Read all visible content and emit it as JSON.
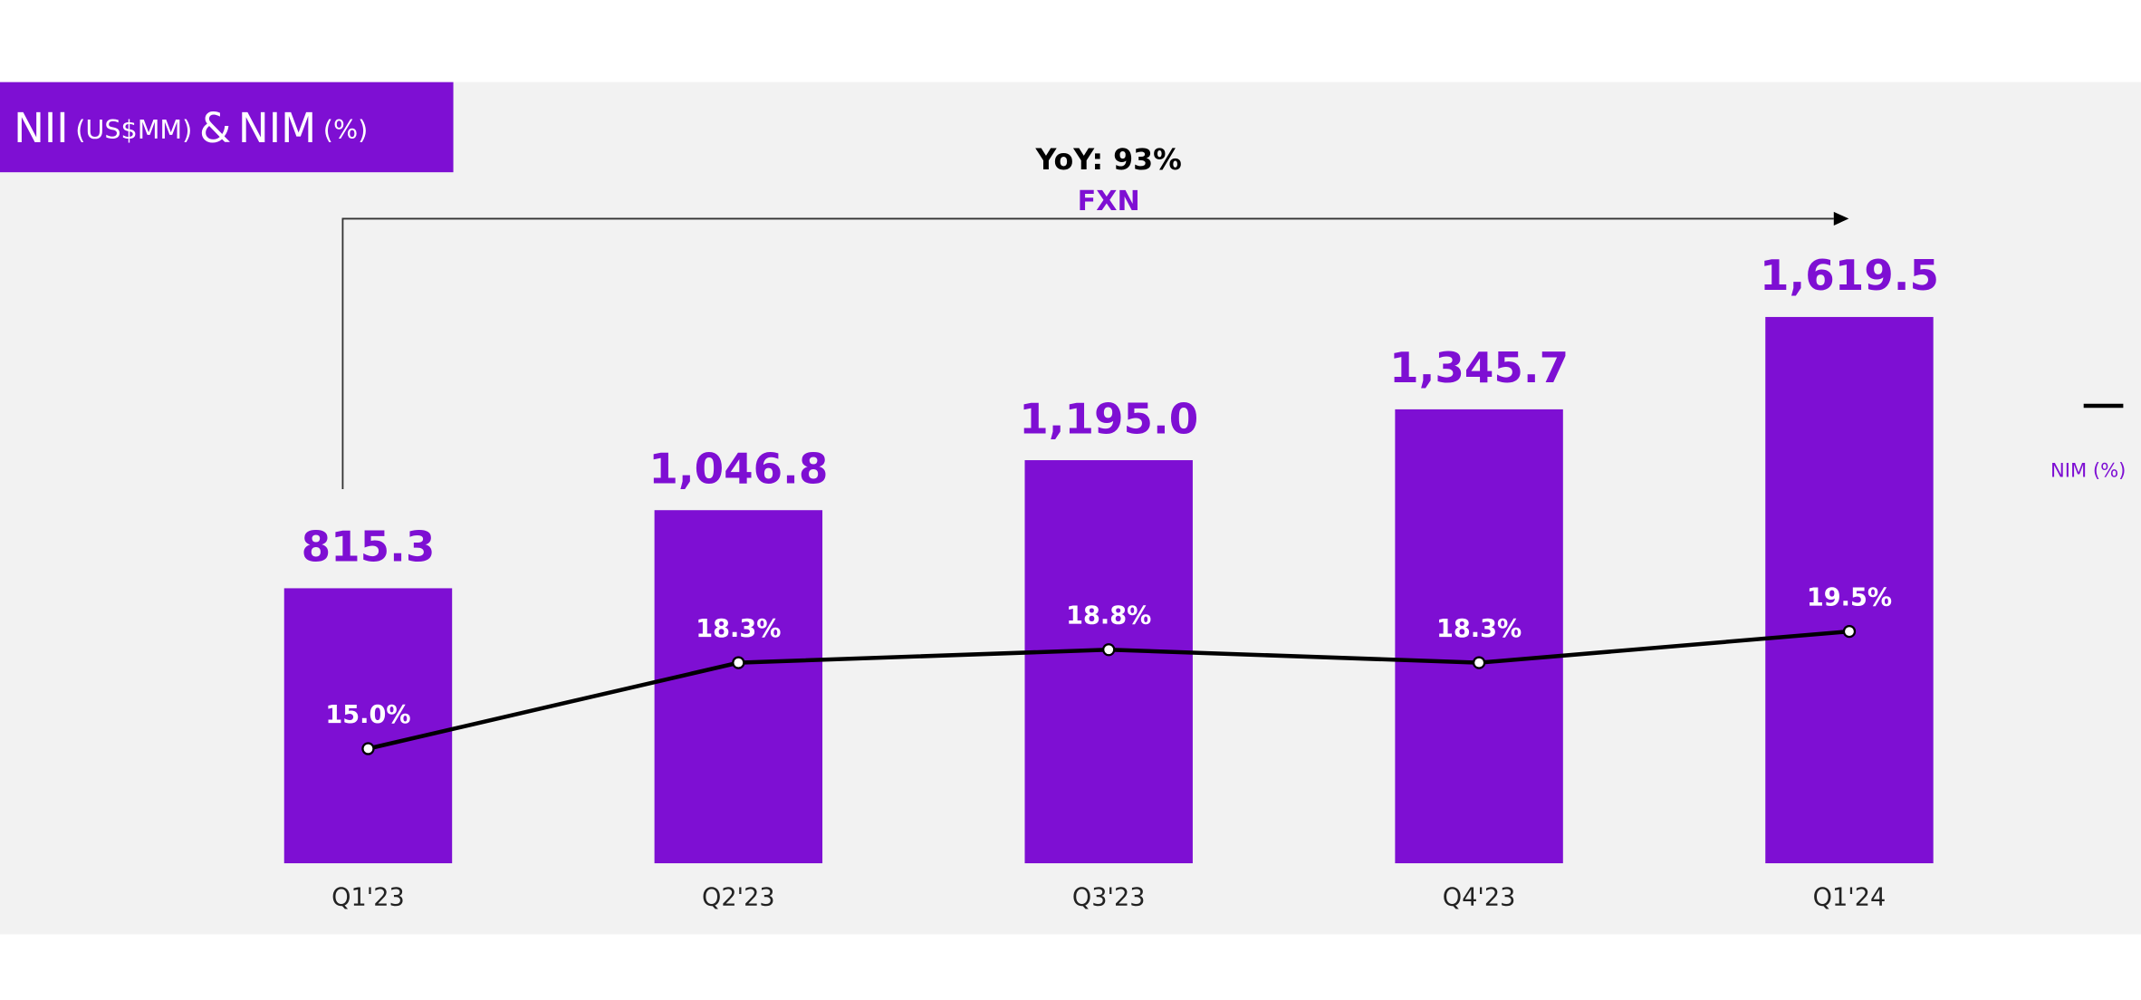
{
  "chart_data": {
    "type": "bar",
    "title_parts": [
      "NII",
      "(US$MM)",
      "&",
      "NIM",
      "(%)"
    ],
    "annotations": [
      "YoY: 93%",
      "FXN"
    ],
    "categories": [
      "Q1'23",
      "Q2'23",
      "Q3'23",
      "Q4'23",
      "Q1'24"
    ],
    "series": [
      {
        "type": "bar",
        "color": "#7e0fd3",
        "values": [
          815.3,
          1046.8,
          1195.0,
          1345.7,
          1619.5
        ],
        "value_labels": [
          "815.3",
          "1,046.8",
          "1,195.0",
          "1,345.7",
          "1,619.5"
        ]
      },
      {
        "type": "line",
        "name": "NIM (%)",
        "color": "#000000",
        "axis": "y2",
        "values": [
          15.0,
          18.3,
          18.8,
          18.3,
          19.5
        ],
        "value_labels": [
          "15.0%",
          "18.3%",
          "18.8%",
          "18.3%",
          "19.5%"
        ]
      }
    ],
    "ylim": [
      0,
      2000
    ],
    "y2lim": [
      10.6,
      36.5
    ],
    "grid": false,
    "legend": "right"
  }
}
